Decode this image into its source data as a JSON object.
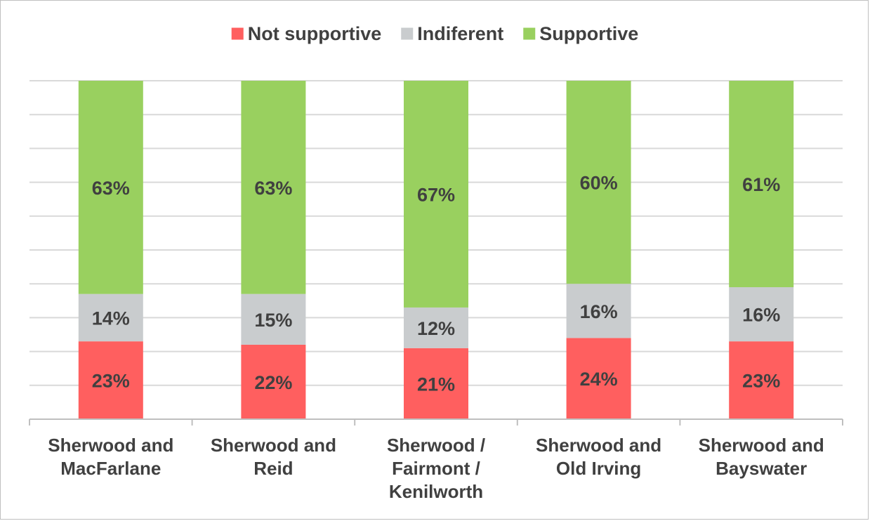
{
  "chart_data": {
    "type": "bar",
    "stacked": true,
    "categories": [
      [
        "Sherwood and",
        "MacFarlane"
      ],
      [
        "Sherwood and",
        "Reid"
      ],
      [
        "Sherwood /",
        "Fairmont /",
        "Kenilworth"
      ],
      [
        "Sherwood and",
        "Old Irving"
      ],
      [
        "Sherwood and",
        "Bayswater"
      ]
    ],
    "series": [
      {
        "name": "Not supportive",
        "color": "#ff5f5f",
        "values": [
          23,
          22,
          21,
          24,
          23
        ],
        "labels": [
          "23%",
          "22%",
          "21%",
          "24%",
          "23%"
        ]
      },
      {
        "name": "Indiferent",
        "color": "#c9ccce",
        "values": [
          14,
          15,
          12,
          16,
          16
        ],
        "labels": [
          "14%",
          "15%",
          "12%",
          "16%",
          "16%"
        ]
      },
      {
        "name": "Supportive",
        "color": "#99d05f",
        "values": [
          63,
          63,
          67,
          60,
          61
        ],
        "labels": [
          "63%",
          "63%",
          "67%",
          "60%",
          "61%"
        ]
      }
    ],
    "ylim": [
      0,
      100
    ],
    "grid": true,
    "legend_position": "top",
    "gridline_color": "#d9d9d9",
    "axis_color": "#bfbfbf",
    "text_color": "#404040"
  }
}
